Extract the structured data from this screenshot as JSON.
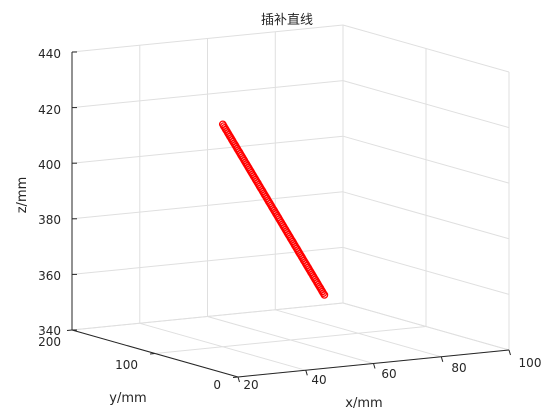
{
  "chart_data": {
    "type": "scatter",
    "title": "插补直线",
    "xlabel": "x/mm",
    "ylabel": "y/mm",
    "zlabel": "z/mm",
    "xlim": [
      20,
      100
    ],
    "ylim": [
      0,
      200
    ],
    "zlim": [
      340,
      440
    ],
    "xticks": [
      "20",
      "40",
      "60",
      "80",
      "100"
    ],
    "yticks": [
      "0",
      "100",
      "200"
    ],
    "zticks": [
      "340",
      "360",
      "380",
      "400",
      "420",
      "440"
    ],
    "grid": true,
    "marker": "circle",
    "marker_color": "#ff0000",
    "series": [
      {
        "start": {
          "x": 40,
          "y": 100,
          "z": 420
        },
        "end": {
          "x": 70,
          "y": 100,
          "z": 355
        },
        "n_points": 100
      }
    ]
  }
}
